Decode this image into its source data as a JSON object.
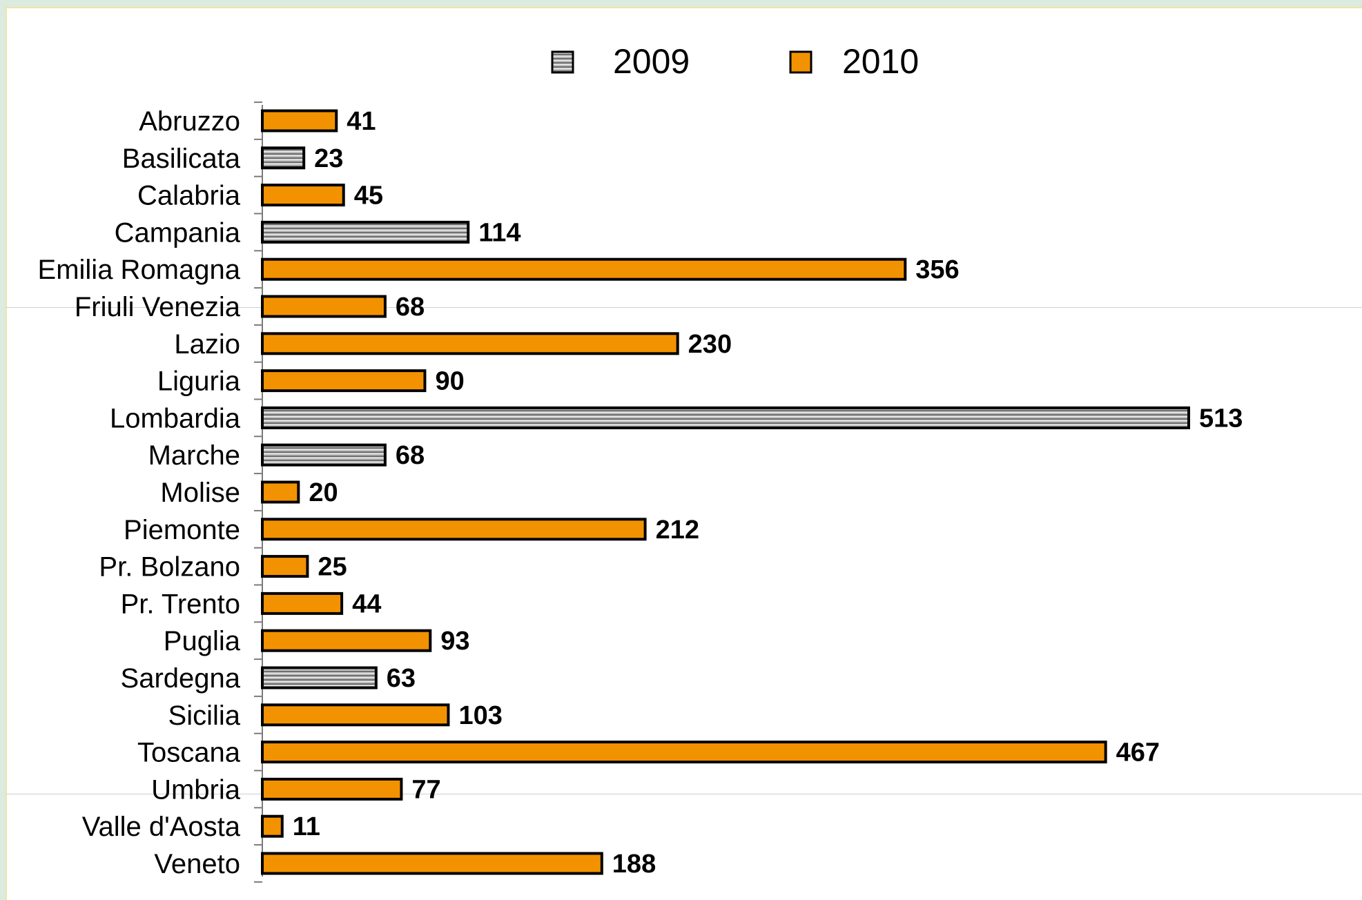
{
  "colors": {
    "series_2009": "#9a9a9a",
    "series_2010": "#f39200",
    "bar_border": "#000000"
  },
  "legend": [
    {
      "name": "2009",
      "series": "2009"
    },
    {
      "name": "2010",
      "series": "2010"
    }
  ],
  "chart_data": {
    "type": "bar",
    "orientation": "horizontal",
    "title": "",
    "xlabel": "",
    "ylabel": "",
    "grid": false,
    "legend_position": "top",
    "xlim": [
      0,
      513
    ],
    "categories": [
      "Abruzzo",
      "Basilicata",
      "Calabria",
      "Campania",
      "Emilia Romagna",
      "Friuli Venezia",
      "Lazio",
      "Liguria",
      "Lombardia",
      "Marche",
      "Molise",
      "Piemonte",
      "Pr. Bolzano",
      "Pr. Trento",
      "Puglia",
      "Sardegna",
      "Sicilia",
      "Toscana",
      "Umbria",
      "Valle d'Aosta",
      "Veneto"
    ],
    "values": [
      41,
      23,
      45,
      114,
      356,
      68,
      230,
      90,
      513,
      68,
      20,
      212,
      25,
      44,
      93,
      63,
      103,
      467,
      77,
      11,
      188
    ],
    "value_labels": [
      "41",
      "23",
      "45",
      "114",
      "356",
      "68",
      "230",
      "90",
      "513",
      "68",
      "20",
      "212",
      "25",
      "44",
      "93",
      "63",
      "103",
      "467",
      "77",
      "11",
      "188"
    ],
    "bar_series": [
      "2010",
      "2009",
      "2010",
      "2009",
      "2010",
      "2010",
      "2010",
      "2010",
      "2009",
      "2009",
      "2010",
      "2010",
      "2010",
      "2010",
      "2010",
      "2009",
      "2010",
      "2010",
      "2010",
      "2010",
      "2010"
    ]
  }
}
